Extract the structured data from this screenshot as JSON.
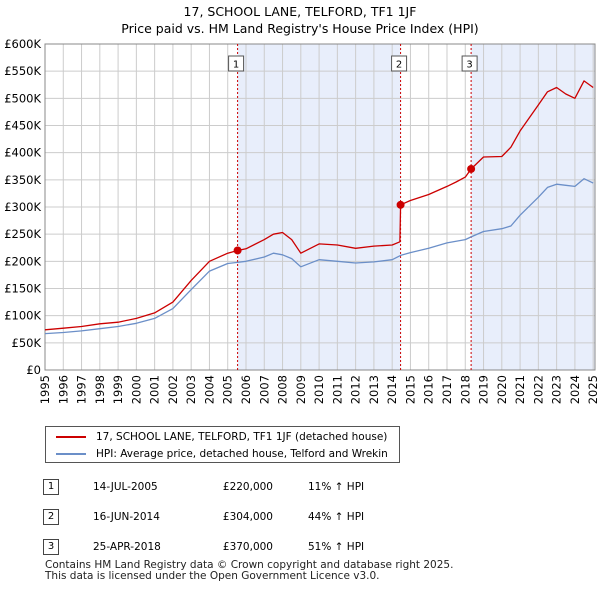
{
  "title_line1": "17, SCHOOL LANE, TELFORD, TF1 1JF",
  "title_line2": "Price paid vs. HM Land Registry's House Price Index (HPI)",
  "colors": {
    "property": "#cc0000",
    "hpi": "#6b8fc8",
    "shade": "#e8eefb",
    "grid": "#cccccc",
    "marker_line": "#cc0000"
  },
  "chart_data": {
    "type": "line",
    "title": "Price paid vs. HM Land Registry's House Price Index (HPI)",
    "xlabel": "",
    "ylabel": "",
    "xlim": [
      1995,
      2025.1
    ],
    "ylim": [
      0,
      600000
    ],
    "y_ticks": [
      0,
      50000,
      100000,
      150000,
      200000,
      250000,
      300000,
      350000,
      400000,
      450000,
      500000,
      550000,
      600000
    ],
    "y_tick_labels": [
      "£0",
      "£50K",
      "£100K",
      "£150K",
      "£200K",
      "£250K",
      "£300K",
      "£350K",
      "£400K",
      "£450K",
      "£500K",
      "£550K",
      "£600K"
    ],
    "x_ticks": [
      1995,
      1996,
      1997,
      1998,
      1999,
      2000,
      2001,
      2002,
      2003,
      2004,
      2005,
      2006,
      2007,
      2008,
      2009,
      2010,
      2011,
      2012,
      2013,
      2014,
      2015,
      2016,
      2017,
      2018,
      2019,
      2020,
      2021,
      2022,
      2023,
      2024,
      2025
    ],
    "x_tick_labels": [
      "1995",
      "1996",
      "1997",
      "1998",
      "1999",
      "2000",
      "2001",
      "2002",
      "2003",
      "2004",
      "2005",
      "2006",
      "2007",
      "2008",
      "2009",
      "2010",
      "2011",
      "2012",
      "2013",
      "2014",
      "2015",
      "2016",
      "2017",
      "2018",
      "2019",
      "2020",
      "2021",
      "2022",
      "2023",
      "2024",
      "2025"
    ],
    "grid": true,
    "shaded_ranges": [
      [
        2005.54,
        2014.46
      ],
      [
        2018.32,
        2025.1
      ]
    ],
    "series": [
      {
        "name": "17, SCHOOL LANE, TELFORD, TF1 1JF (detached house)",
        "color": "#cc0000",
        "points": [
          [
            1995.0,
            74000
          ],
          [
            1996.0,
            77000
          ],
          [
            1997.0,
            80000
          ],
          [
            1998.0,
            85000
          ],
          [
            1999.0,
            88000
          ],
          [
            2000.0,
            95000
          ],
          [
            2001.0,
            105000
          ],
          [
            2002.0,
            125000
          ],
          [
            2003.0,
            165000
          ],
          [
            2004.0,
            200000
          ],
          [
            2005.0,
            215000
          ],
          [
            2005.54,
            220000
          ],
          [
            2006.0,
            223000
          ],
          [
            2007.0,
            240000
          ],
          [
            2007.5,
            250000
          ],
          [
            2008.0,
            253000
          ],
          [
            2008.5,
            240000
          ],
          [
            2009.0,
            215000
          ],
          [
            2010.0,
            232000
          ],
          [
            2011.0,
            230000
          ],
          [
            2012.0,
            224000
          ],
          [
            2013.0,
            228000
          ],
          [
            2014.0,
            230000
          ],
          [
            2014.42,
            236000
          ],
          [
            2014.46,
            304000
          ],
          [
            2015.0,
            312000
          ],
          [
            2016.0,
            323000
          ],
          [
            2017.0,
            338000
          ],
          [
            2017.5,
            346000
          ],
          [
            2018.0,
            355000
          ],
          [
            2018.32,
            370000
          ],
          [
            2019.0,
            392000
          ],
          [
            2020.0,
            393000
          ],
          [
            2020.5,
            410000
          ],
          [
            2021.0,
            440000
          ],
          [
            2022.0,
            488000
          ],
          [
            2022.5,
            512000
          ],
          [
            2023.0,
            520000
          ],
          [
            2023.5,
            508000
          ],
          [
            2024.0,
            500000
          ],
          [
            2024.5,
            532000
          ],
          [
            2025.0,
            520000
          ]
        ]
      },
      {
        "name": "HPI: Average price, detached house, Telford and Wrekin",
        "color": "#6b8fc8",
        "points": [
          [
            1995.0,
            67000
          ],
          [
            1996.0,
            69000
          ],
          [
            1997.0,
            72000
          ],
          [
            1998.0,
            76000
          ],
          [
            1999.0,
            80000
          ],
          [
            2000.0,
            86000
          ],
          [
            2001.0,
            95000
          ],
          [
            2002.0,
            113000
          ],
          [
            2003.0,
            148000
          ],
          [
            2004.0,
            182000
          ],
          [
            2005.0,
            196000
          ],
          [
            2005.54,
            198000
          ],
          [
            2006.0,
            200000
          ],
          [
            2007.0,
            208000
          ],
          [
            2007.5,
            215000
          ],
          [
            2008.0,
            212000
          ],
          [
            2008.5,
            205000
          ],
          [
            2009.0,
            190000
          ],
          [
            2010.0,
            203000
          ],
          [
            2011.0,
            200000
          ],
          [
            2012.0,
            197000
          ],
          [
            2013.0,
            199000
          ],
          [
            2014.0,
            203000
          ],
          [
            2014.46,
            211000
          ],
          [
            2015.0,
            216000
          ],
          [
            2016.0,
            224000
          ],
          [
            2017.0,
            234000
          ],
          [
            2018.0,
            240000
          ],
          [
            2018.32,
            245000
          ],
          [
            2019.0,
            255000
          ],
          [
            2020.0,
            260000
          ],
          [
            2020.5,
            265000
          ],
          [
            2021.0,
            285000
          ],
          [
            2022.0,
            318000
          ],
          [
            2022.5,
            336000
          ],
          [
            2023.0,
            342000
          ],
          [
            2023.5,
            340000
          ],
          [
            2024.0,
            338000
          ],
          [
            2024.5,
            352000
          ],
          [
            2025.0,
            344000
          ]
        ]
      }
    ],
    "markers": [
      {
        "label": "1",
        "x": 2005.54,
        "y": 220000
      },
      {
        "label": "2",
        "x": 2014.46,
        "y": 304000
      },
      {
        "label": "3",
        "x": 2018.32,
        "y": 370000
      }
    ]
  },
  "legend": {
    "property_label": "17, SCHOOL LANE, TELFORD, TF1 1JF (detached house)",
    "hpi_label": "HPI: Average price, detached house, Telford and Wrekin"
  },
  "sales": [
    {
      "num": "1",
      "date": "14-JUL-2005",
      "price": "£220,000",
      "hpi": "11% ↑ HPI"
    },
    {
      "num": "2",
      "date": "16-JUN-2014",
      "price": "£304,000",
      "hpi": "44% ↑ HPI"
    },
    {
      "num": "3",
      "date": "25-APR-2018",
      "price": "£370,000",
      "hpi": "51% ↑ HPI"
    }
  ],
  "footer_line1": "Contains HM Land Registry data © Crown copyright and database right 2025.",
  "footer_line2": "This data is licensed under the Open Government Licence v3.0."
}
